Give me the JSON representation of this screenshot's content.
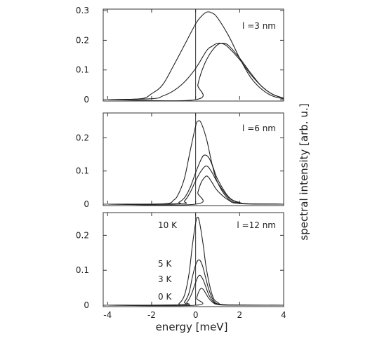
{
  "chart_data": {
    "type": "line",
    "xlabel": "energy [meV]",
    "ylabel": "spectral intensity [arb. u.]",
    "xlim": [
      -4.2,
      4.0
    ],
    "x_ticks": [
      "-4",
      "-2",
      "0",
      "2",
      "4"
    ],
    "panels": [
      {
        "label": "l =3 nm",
        "ylim": [
          0,
          0.305
        ],
        "y_ticks": [
          "0",
          "0.1",
          "0.2",
          "0.3"
        ],
        "series": [
          {
            "x": [
              -4.0,
              -2.5,
              -2.0,
              -1.5,
              -1.0,
              -0.5,
              0.0,
              0.25,
              0.5,
              0.75,
              1.0,
              1.5,
              2.0,
              2.5,
              3.0,
              3.5,
              4.0
            ],
            "values": [
              0,
              0.003,
              0.02,
              0.05,
              0.115,
              0.185,
              0.255,
              0.28,
              0.295,
              0.292,
              0.275,
              0.215,
              0.14,
              0.075,
              0.035,
              0.012,
              0.003
            ]
          },
          {
            "x": [
              -4.0,
              -2.0,
              -1.5,
              -1.0,
              -0.5,
              0.0,
              0.5,
              0.75,
              1.0,
              1.25,
              1.5,
              2.0,
              2.5,
              3.0,
              3.5,
              4.0
            ],
            "values": [
              0,
              0.003,
              0.012,
              0.03,
              0.06,
              0.105,
              0.165,
              0.18,
              0.19,
              0.188,
              0.175,
              0.135,
              0.085,
              0.045,
              0.018,
              0.005
            ]
          },
          {
            "x": [
              -4.0,
              0.0,
              0.1,
              0.25,
              0.5,
              0.75,
              1.0,
              1.25,
              1.5,
              2.0,
              2.5,
              3.0,
              3.5,
              4.0
            ],
            "values": [
              0,
              0,
              0.05,
              0.09,
              0.135,
              0.165,
              0.185,
              0.19,
              0.182,
              0.14,
              0.09,
              0.045,
              0.018,
              0.005
            ]
          }
        ]
      },
      {
        "label": "l =6 nm",
        "ylim": [
          0,
          0.275
        ],
        "y_ticks": [
          "0",
          "0.1",
          "0.2"
        ],
        "series": [
          {
            "x": [
              -4.0,
              -1.5,
              -1.0,
              -0.75,
              -0.5,
              -0.25,
              0.0,
              0.1,
              0.25,
              0.5,
              0.75,
              1.0,
              1.5,
              2.0,
              2.5,
              4.0
            ],
            "values": [
              0,
              0.001,
              0.012,
              0.035,
              0.08,
              0.16,
              0.235,
              0.25,
              0.245,
              0.195,
              0.12,
              0.065,
              0.015,
              0.003,
              0.0005,
              0
            ]
          },
          {
            "x": [
              -4.0,
              -1.0,
              -0.75,
              -0.5,
              -0.25,
              0.0,
              0.25,
              0.4,
              0.6,
              0.8,
              1.0,
              1.5,
              2.0,
              2.5,
              4.0
            ],
            "values": [
              0,
              0.001,
              0.006,
              0.02,
              0.05,
              0.095,
              0.135,
              0.148,
              0.14,
              0.11,
              0.075,
              0.022,
              0.005,
              0.001,
              0
            ]
          },
          {
            "x": [
              -4.0,
              -0.75,
              -0.5,
              -0.25,
              0.0,
              0.25,
              0.5,
              0.75,
              1.0,
              1.5,
              2.0,
              2.5,
              4.0
            ],
            "values": [
              0,
              0.001,
              0.01,
              0.035,
              0.07,
              0.1,
              0.115,
              0.095,
              0.065,
              0.02,
              0.004,
              0.001,
              0
            ]
          },
          {
            "x": [
              -4.0,
              0.0,
              0.1,
              0.25,
              0.4,
              0.5,
              0.6,
              0.75,
              1.0,
              1.5,
              2.0,
              4.0
            ],
            "values": [
              0,
              0,
              0.035,
              0.065,
              0.08,
              0.085,
              0.08,
              0.065,
              0.04,
              0.012,
              0.002,
              0
            ]
          }
        ]
      },
      {
        "label": "l =12 nm",
        "ylim": [
          0,
          0.265
        ],
        "y_ticks": [
          "0",
          "0.1",
          "0.2"
        ],
        "temperature_labels": [
          "10 K",
          "5 K",
          "3 K",
          "0 K"
        ],
        "series": [
          {
            "name": "10 K",
            "x": [
              -4.0,
              -1.0,
              -0.75,
              -0.5,
              -0.3,
              -0.15,
              0.0,
              0.1,
              0.2,
              0.35,
              0.5,
              0.75,
              1.0,
              1.5,
              4.0
            ],
            "values": [
              0,
              0.001,
              0.005,
              0.03,
              0.09,
              0.17,
              0.235,
              0.252,
              0.23,
              0.17,
              0.1,
              0.03,
              0.008,
              0.001,
              0
            ]
          },
          {
            "name": "5 K",
            "x": [
              -4.0,
              -0.75,
              -0.5,
              -0.3,
              -0.15,
              0.0,
              0.15,
              0.3,
              0.45,
              0.6,
              0.8,
              1.0,
              1.5,
              4.0
            ],
            "values": [
              0,
              0.001,
              0.01,
              0.035,
              0.08,
              0.115,
              0.13,
              0.115,
              0.08,
              0.045,
              0.015,
              0.004,
              0.0005,
              0
            ]
          },
          {
            "name": "3 K",
            "x": [
              -4.0,
              -0.6,
              -0.4,
              -0.2,
              0.0,
              0.15,
              0.3,
              0.45,
              0.6,
              0.8,
              1.0,
              1.5,
              4.0
            ],
            "values": [
              0,
              0.001,
              0.008,
              0.03,
              0.065,
              0.085,
              0.078,
              0.055,
              0.03,
              0.01,
              0.003,
              0.0005,
              0
            ]
          },
          {
            "name": "0 K",
            "x": [
              -4.0,
              0.0,
              0.05,
              0.15,
              0.25,
              0.35,
              0.45,
              0.6,
              0.8,
              1.0,
              1.5,
              4.0
            ],
            "values": [
              0,
              0,
              0.02,
              0.04,
              0.048,
              0.045,
              0.035,
              0.02,
              0.007,
              0.002,
              0.0003,
              0
            ]
          }
        ]
      }
    ]
  }
}
